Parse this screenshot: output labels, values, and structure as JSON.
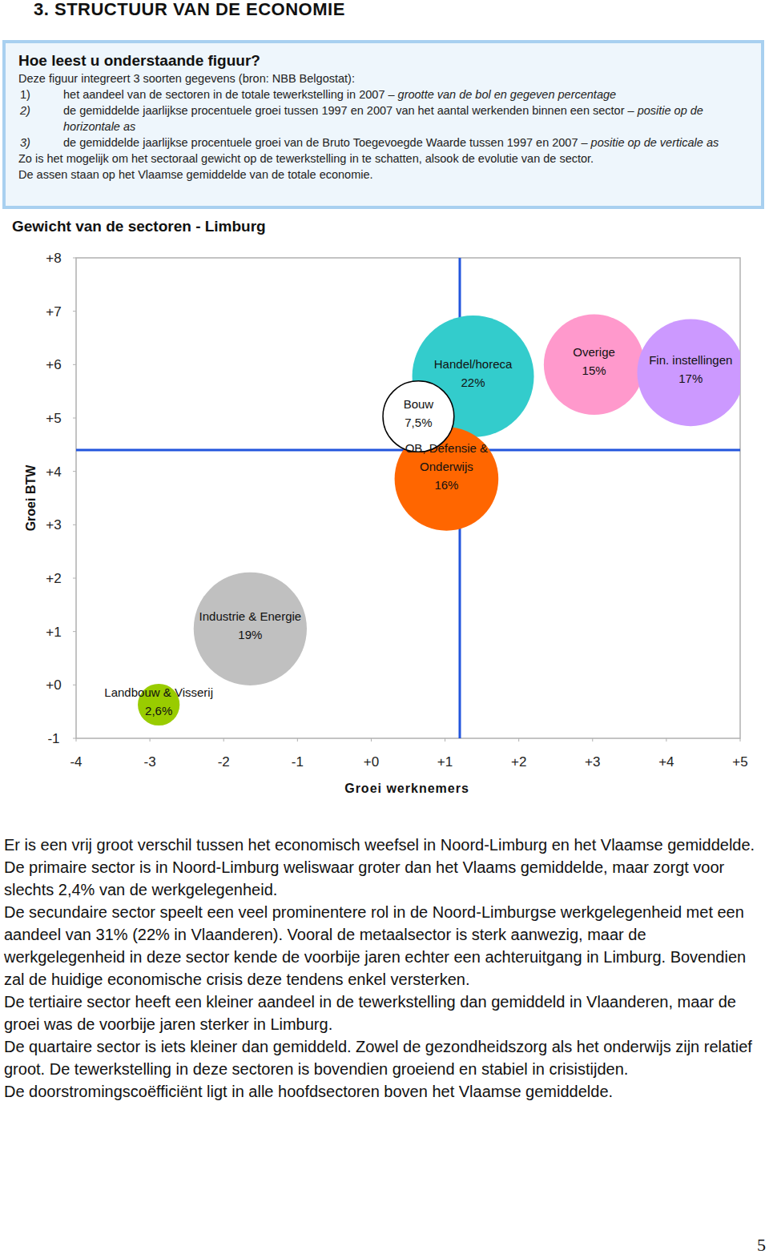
{
  "header": {
    "title": "3. STRUCTUUR VAN DE ECONOMIE"
  },
  "info_box": {
    "title": "Hoe leest u onderstaande figuur?",
    "intro": "Deze figuur integreert 3 soorten gegevens (bron: NBB Belgostat):",
    "items": [
      {
        "marker": "1)",
        "text": "het aandeel van de sectoren in de totale tewerkstelling in 2007 –",
        "emphasis": "grootte van de bol en gegeven percentage"
      },
      {
        "marker": "2)",
        "text": "de gemiddelde jaarlijkse procentuele groei tussen 1997 en 2007 van het aantal werkenden binnen een sector –",
        "emphasis": "positie op de horizontale as"
      },
      {
        "marker": "3)",
        "text": "de gemiddelde jaarlijkse procentuele groei van de Bruto Toegevoegde Waarde tussen 1997 en 2007 –",
        "emphasis": "positie op de verticale as"
      }
    ],
    "outro": [
      "Zo is het mogelijk om het sectoraal gewicht op de tewerkstelling in te schatten, alsook de evolutie van de sector.",
      "De assen staan op het Vlaamse gemiddelde van de totale economie."
    ]
  },
  "chart_data": {
    "type": "bubble",
    "title": "Gewicht van de sectoren - Limburg",
    "x_label": "Groei werknemers",
    "y_label": "Groei BTW",
    "xlim": [
      -4,
      5
    ],
    "ylim": [
      -1,
      8
    ],
    "xticks": [
      -4,
      -3,
      -2,
      -1,
      {
        "value": 0,
        "label": "+0"
      },
      {
        "value": 1,
        "label": "+1"
      },
      {
        "value": 2,
        "label": "+2"
      },
      {
        "value": 3,
        "label": "+3"
      },
      {
        "value": 4,
        "label": "+4"
      },
      {
        "value": 5,
        "label": "+5"
      }
    ],
    "yticks": [
      -1,
      {
        "value": 0,
        "label": "+0"
      },
      {
        "value": 1,
        "label": "+1"
      },
      {
        "value": 2,
        "label": "+2"
      },
      {
        "value": 3,
        "label": "+3"
      },
      {
        "value": 4,
        "label": "+4"
      },
      {
        "value": 5,
        "label": "+5"
      },
      {
        "value": 6,
        "label": "+6"
      },
      {
        "value": 7,
        "label": "+7"
      },
      {
        "value": 8,
        "label": "+8"
      }
    ],
    "grid": false,
    "average_x": 1.2,
    "average_y": 4.4,
    "points": [
      {
        "name": "Handel/horeca",
        "x": 1.38,
        "y": 5.78,
        "size": 22,
        "size_label": "22%",
        "color": "#33cccc"
      },
      {
        "name": "Overige",
        "x": 3.02,
        "y": 6.0,
        "size": 15,
        "size_label": "15%",
        "color": "#ff99cc"
      },
      {
        "name": "Fin. instellingen",
        "x": 4.33,
        "y": 5.85,
        "size": 17,
        "size_label": "17%",
        "color": "#cc99ff"
      },
      {
        "name": "OB, Defensie & Onderwijs",
        "x": 1.02,
        "y": 3.86,
        "size": 16,
        "size_label": "16%",
        "color": "#ff6600"
      },
      {
        "name": "Industrie & Energie",
        "x": -1.64,
        "y": 1.05,
        "size": 19,
        "size_label": "19%",
        "color": "#c0c0c0"
      },
      {
        "name": "Landbouw & Visserij",
        "x": -2.88,
        "y": -0.37,
        "size": 2.6,
        "size_label": "2,6%",
        "color": "#99cc00"
      },
      {
        "name": "Bouw",
        "x": 0.64,
        "y": 5.03,
        "size": 7.5,
        "size_label": "7,5%",
        "color": "#ffffff"
      }
    ]
  },
  "body": {
    "paragraphs": [
      "Er is een vrij groot verschil tussen het economisch weefsel in Noord-Limburg en het Vlaamse gemiddelde.",
      "De primaire sector is in Noord-Limburg weliswaar groter dan het Vlaams gemiddelde, maar zorgt voor slechts 2,4% van de werkgelegenheid.",
      "De secundaire sector speelt een veel prominentere rol in de Noord-Limburgse werkgelegenheid met een aandeel van 31% (22% in Vlaanderen). Vooral de metaalsector is sterk aanwezig, maar de werkgelegenheid in deze sector kende de voorbije jaren echter een achteruitgang in Limburg. Bovendien zal de huidige economische crisis deze tendens enkel versterken.",
      "De tertiaire sector heeft een kleiner aandeel in de tewerkstelling dan gemiddeld in Vlaanderen, maar de groei was de voorbije jaren sterker in Limburg.",
      "De quartaire sector is iets kleiner dan gemiddeld. Zowel de gezondheidszorg als het onderwijs zijn relatief groot. De tewerkstelling in deze sectoren is bovendien groeiend en stabiel in crisistijden.",
      "De doorstromingscoëfficiënt ligt in alle hoofdsectoren boven het Vlaamse gemiddelde."
    ]
  },
  "page_number": "5"
}
